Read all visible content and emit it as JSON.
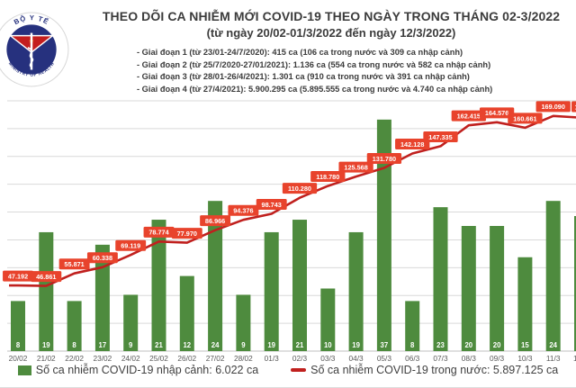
{
  "header": {
    "title_line1": "THEO DÕI CA NHIỄM MỚI COVID-19 THEO NGÀY TRONG THÁNG 02-3/2022",
    "title_line2": "(từ ngày 20/02-01/3/2022 đến ngày 12/3/2022)",
    "bullets": [
      "- Giai đoạn 1 (từ 23/01-24/7/2020): 415 ca (106 ca trong nước và 309 ca nhập cảnh)",
      "- Giai đoạn 2 (từ 25/7/2020-27/01/2021): 1.136 ca (554 ca trong nước và 582 ca nhập cảnh)",
      "- Giai đoạn 3 (từ 28/01-26/4/2021): 1.301 ca (910 ca trong nước và 391 ca nhập cảnh)",
      "- Giai đoạn 4 (từ 27/4/2021): 5.900.295 ca (5.895.555 ca trong nước và 4.740 ca nhập cảnh)"
    ]
  },
  "logo": {
    "name": "ministry-of-health-emblem",
    "text_top": "BỘ Y TẾ",
    "text_bottom": "MINISTRY OF HEALTH"
  },
  "chart_data": {
    "type": "combo",
    "categories": [
      "20/02",
      "21/02",
      "22/02",
      "23/02",
      "24/02",
      "25/02",
      "26/02",
      "27/02",
      "28/02",
      "01/3",
      "02/3",
      "03/3",
      "04/3",
      "05/3",
      "06/3",
      "07/3",
      "08/3",
      "09/3",
      "10/3",
      "11/3"
    ],
    "series": [
      {
        "name": "Số ca nhiễm COVID-19 nhập cảnh",
        "type": "bar",
        "color": "#4e8b3e",
        "values": [
          8,
          19,
          8,
          17,
          9,
          21,
          12,
          24,
          9,
          19,
          21,
          10,
          19,
          37,
          8,
          23,
          20,
          20,
          15,
          24
        ]
      },
      {
        "name": "Số ca nhiễm COVID-19 trong nước",
        "type": "line",
        "color": "#c0201e",
        "values": [
          47192,
          46861,
          55871,
          60338,
          69119,
          78774,
          77970,
          86966,
          94376,
          98743,
          110280,
          118780,
          125568,
          131780,
          142128,
          147335,
          162415,
          164576,
          160661,
          169090
        ],
        "labels": [
          "47.192",
          "46.861",
          "55.871",
          "60.338",
          "69.119",
          "78.774",
          "77.970",
          "86.966",
          "94.376",
          "98.743",
          "110.280",
          "118.780",
          "125.568",
          "131.780",
          "142.128",
          "147.335",
          "162.415",
          "164.576",
          "160.661",
          "169.090"
        ]
      }
    ],
    "partial_last_category": {
      "note": "right-most column clipped by image edge",
      "line_label_fragment": "16",
      "tick_label_fragment": "1",
      "bar_visible": true
    },
    "y_axis": {
      "line_max": 180000,
      "bar_max": 40,
      "gridline_count": 9,
      "labels_visible": false
    },
    "grid": true,
    "legend_position": "bottom"
  },
  "legend": {
    "imported": {
      "label": "Số ca nhiễm COVID-19 nhập cảnh: 6.022 ca",
      "color": "#4e8b3e"
    },
    "domestic": {
      "label": "Số ca nhiễm COVID-19 trong nước: 5.897.125 ca",
      "color": "#c0201e"
    }
  },
  "colors": {
    "bar_green": "#4e8b3e",
    "line_red": "#c0201e",
    "label_box": "#e8432c",
    "grid": "#d9d9d9",
    "axis": "#bfbfbf",
    "title_text": "#3b3b3b",
    "tick_text": "#595959",
    "legend_text": "#404040",
    "logo_navy": "#26317e",
    "logo_red": "#c41e1e",
    "logo_star": "#f7c31f"
  }
}
